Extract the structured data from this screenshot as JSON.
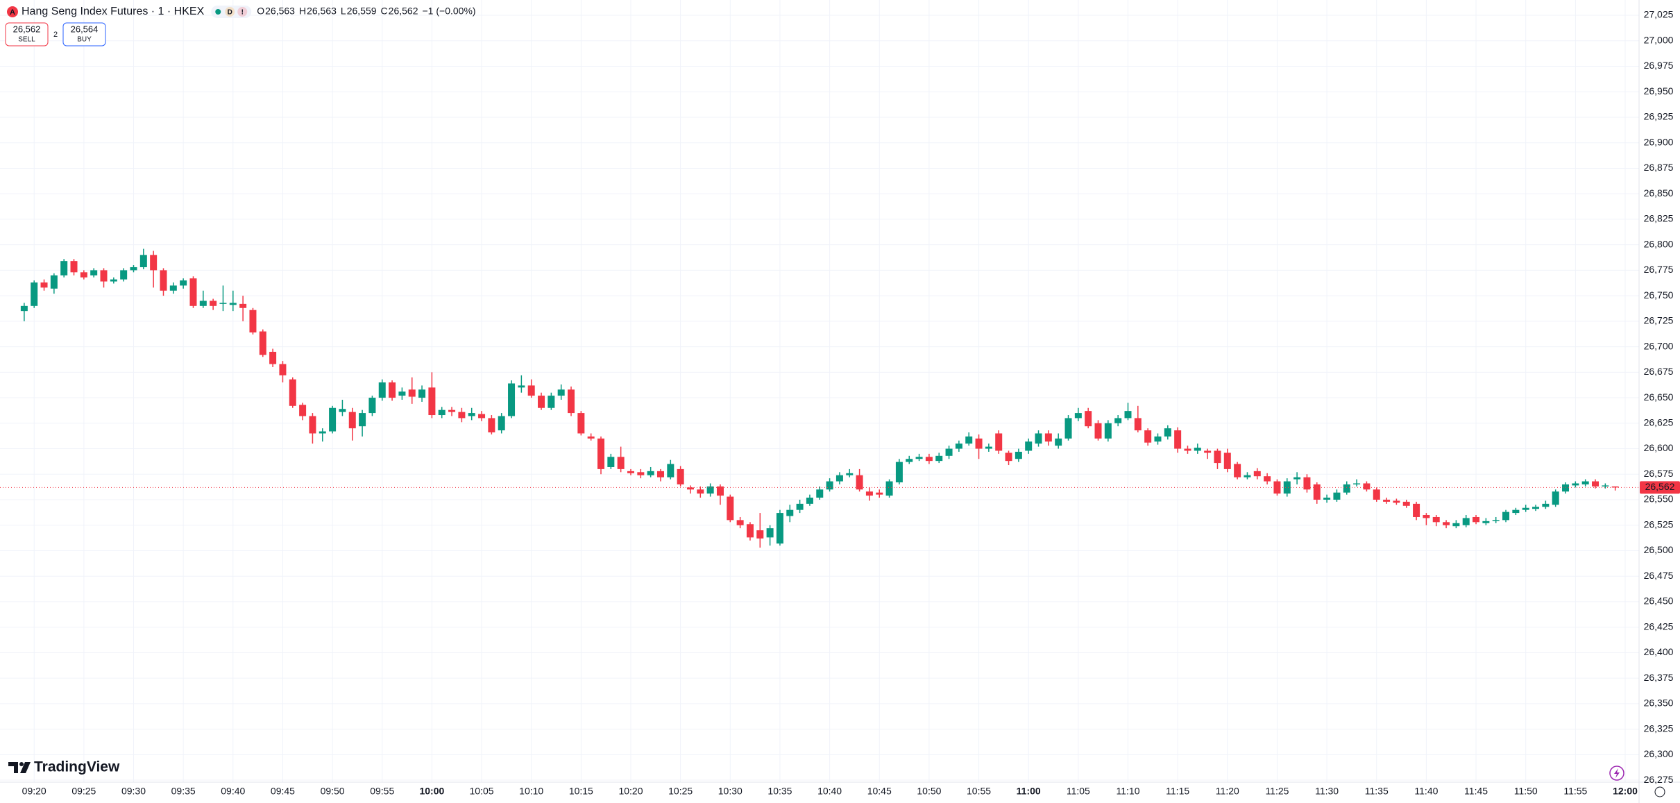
{
  "chart_data": {
    "type": "candlestick",
    "title": "Hang Seng Index Futures · 1 · HKEX",
    "symbol_icon": "A",
    "badges": [
      "D",
      "!"
    ],
    "ohlc_legend": [
      {
        "key": "O",
        "value": "26,563"
      },
      {
        "key": "H",
        "value": "26,563"
      },
      {
        "key": "L",
        "value": "26,559"
      },
      {
        "key": "C",
        "value": "26,562"
      }
    ],
    "change": "−1 (−0.00%)",
    "trade": {
      "sell_price": "26,562",
      "sell_label": "SELL",
      "spread": "2",
      "buy_price": "26,564",
      "buy_label": "BUY"
    },
    "brand": "TradingView",
    "up_color": "#089981",
    "down_color": "#f23645",
    "grid": true,
    "last_price": 26562,
    "last_price_label": "26,562",
    "categories": [
      null,
      "09:20",
      null,
      null,
      null,
      null,
      "09:25",
      null,
      null,
      null,
      null,
      "09:30",
      null,
      null,
      null,
      null,
      "09:35",
      null,
      null,
      null,
      null,
      "09:40",
      null,
      null,
      null,
      null,
      "09:45",
      null,
      null,
      null,
      null,
      "09:50",
      null,
      null,
      null,
      null,
      "09:55",
      null,
      null,
      null,
      null,
      "10:00",
      null,
      null,
      null,
      null,
      "10:05",
      null,
      null,
      null,
      null,
      "10:10",
      null,
      null,
      null,
      null,
      "10:15",
      null,
      null,
      null,
      null,
      "10:20",
      null,
      null,
      null,
      null,
      "10:25",
      null,
      null,
      null,
      null,
      "10:30",
      null,
      null,
      null,
      null,
      "10:35",
      null,
      null,
      null,
      null,
      "10:40",
      null,
      null,
      null,
      null,
      "10:45",
      null,
      null,
      null,
      null,
      "10:50",
      null,
      null,
      null,
      null,
      "10:55",
      null,
      null,
      null,
      null,
      "11:00",
      null,
      null,
      null,
      null,
      "11:05",
      null,
      null,
      null,
      null,
      "11:10",
      null,
      null,
      null,
      null,
      "11:15",
      null,
      null,
      null,
      null,
      "11:20",
      null,
      null,
      null,
      null,
      "11:25",
      null,
      null,
      null,
      null,
      "11:30",
      null,
      null,
      null,
      null,
      "11:35",
      null,
      null,
      null,
      null,
      "11:40",
      null,
      null,
      null,
      null,
      "11:45",
      null,
      null,
      null,
      null,
      "11:50",
      null,
      null,
      null,
      null,
      "11:55",
      null,
      null,
      null,
      null,
      "12:00"
    ],
    "open": [
      26735,
      26740,
      26763,
      26757,
      26770,
      26784,
      26773,
      26770,
      26775,
      26764,
      26766,
      26775,
      26778,
      26790,
      26775,
      26755,
      26760,
      26767,
      26740,
      26745,
      26742,
      26741,
      26742,
      26736,
      26715,
      26695,
      26683,
      26668,
      26643,
      26632,
      26615,
      26617,
      26636,
      26636,
      26622,
      26635,
      26650,
      26665,
      26652,
      26658,
      26650,
      26660,
      26633,
      26638,
      26636,
      26632,
      26634,
      26630,
      26618,
      26632,
      26660,
      26662,
      26652,
      26640,
      26652,
      26658,
      26635,
      26612,
      26610,
      26582,
      26592,
      26578,
      26577,
      26574,
      26578,
      26572,
      26580,
      26562,
      26560,
      26556,
      26563,
      26553,
      26530,
      26526,
      26520,
      26513,
      26507,
      26534,
      26540,
      26546,
      26552,
      26560,
      26568,
      26574,
      26574,
      26558,
      26557,
      26554,
      26567,
      26587,
      26590,
      26592,
      26588,
      26593,
      26600,
      26605,
      26610,
      26600,
      26615,
      26596,
      26590,
      26598,
      26605,
      26615,
      26603,
      26610,
      26630,
      26637,
      26625,
      26610,
      26625,
      26630,
      26630,
      26618,
      26607,
      26612,
      26618,
      26600,
      26598,
      26598,
      26598,
      26596,
      26585,
      26572,
      26578,
      26573,
      26568,
      26556,
      26570,
      26572,
      26565,
      26550,
      26550,
      26557,
      26565,
      26566,
      26560,
      26550,
      26549,
      26548,
      26546,
      26535,
      26533,
      26528,
      26524,
      26525,
      26533,
      26527,
      26529,
      26530,
      26537,
      26540,
      26541,
      26543,
      26545,
      26558,
      26564,
      26565,
      26568,
      26563,
      26563,
      null
    ],
    "high": [
      26743,
      26765,
      26766,
      26772,
      26786,
      26786,
      26775,
      26777,
      26777,
      26768,
      26777,
      26780,
      26796,
      26794,
      26777,
      26763,
      26767,
      26769,
      26755,
      26747,
      26760,
      26755,
      26750,
      26738,
      26717,
      26698,
      26686,
      26670,
      26645,
      26635,
      26620,
      26642,
      26648,
      26640,
      26638,
      26652,
      26668,
      26667,
      26660,
      26670,
      26662,
      26675,
      26641,
      26641,
      26640,
      26640,
      26637,
      26633,
      26635,
      26667,
      26672,
      26668,
      26655,
      26655,
      26663,
      26661,
      26637,
      26615,
      26612,
      26595,
      26602,
      26580,
      26580,
      26582,
      26580,
      26589,
      26583,
      26564,
      26563,
      26566,
      26565,
      26555,
      26533,
      26528,
      26537,
      26525,
      26540,
      26545,
      26550,
      26555,
      26563,
      26571,
      26577,
      26580,
      26580,
      26562,
      26560,
      26570,
      26590,
      26593,
      26595,
      26595,
      26596,
      26603,
      26608,
      26616,
      26614,
      26605,
      26618,
      26598,
      26600,
      26610,
      26618,
      26618,
      26615,
      26633,
      26640,
      26640,
      26628,
      26628,
      26633,
      26645,
      26642,
      26620,
      26615,
      26623,
      26621,
      26603,
      26605,
      26600,
      26600,
      26600,
      26587,
      26577,
      26581,
      26576,
      26570,
      26571,
      26577,
      26575,
      26567,
      26555,
      26560,
      26568,
      26570,
      26568,
      26562,
      26552,
      26551,
      26550,
      26548,
      26537,
      26535,
      26530,
      26530,
      26535,
      26535,
      26532,
      26533,
      26540,
      26542,
      26545,
      26545,
      26549,
      26560,
      26567,
      26568,
      26570,
      26570,
      26566,
      26563,
      null
    ],
    "low": [
      26725,
      26738,
      26755,
      26752,
      26768,
      26770,
      26766,
      26768,
      26758,
      26762,
      26764,
      26773,
      26776,
      26758,
      26750,
      26752,
      26757,
      26738,
      26738,
      26736,
      26735,
      26735,
      26725,
      26712,
      26690,
      26680,
      26665,
      26640,
      26628,
      26605,
      26607,
      26615,
      26632,
      26608,
      26612,
      26632,
      26647,
      26647,
      26648,
      26644,
      26646,
      26630,
      26630,
      26632,
      26626,
      26628,
      26627,
      26614,
      26615,
      26630,
      26655,
      26650,
      26638,
      26638,
      26648,
      26632,
      26613,
      26608,
      26575,
      26580,
      26577,
      26574,
      26571,
      26572,
      26568,
      26570,
      26563,
      26556,
      26552,
      26553,
      26545,
      26528,
      26522,
      26510,
      26503,
      26505,
      26505,
      26528,
      26537,
      26544,
      26550,
      26558,
      26565,
      26572,
      26558,
      26549,
      26552,
      26552,
      26565,
      26585,
      26588,
      26585,
      26586,
      26590,
      26597,
      26603,
      26590,
      26597,
      26595,
      26584,
      26587,
      26595,
      26602,
      26603,
      26600,
      26608,
      26627,
      26620,
      26608,
      26607,
      26622,
      26628,
      26616,
      26603,
      26604,
      26609,
      26596,
      26595,
      26595,
      26590,
      26580,
      26577,
      26570,
      26570,
      26570,
      26565,
      26554,
      26553,
      26565,
      26557,
      26546,
      26547,
      26548,
      26555,
      26563,
      26558,
      26548,
      26546,
      26545,
      26542,
      26530,
      26525,
      26524,
      26522,
      26522,
      26523,
      26526,
      26525,
      26527,
      26528,
      26535,
      26538,
      26539,
      26541,
      26543,
      26556,
      26562,
      26563,
      26561,
      26561,
      26559,
      null
    ],
    "close": [
      26740,
      26763,
      26758,
      26770,
      26784,
      26773,
      26768,
      26775,
      26764,
      26766,
      26775,
      26778,
      26790,
      26775,
      26755,
      26760,
      26765,
      26740,
      26745,
      26740,
      26743,
      26743,
      26738,
      26714,
      26692,
      26683,
      26672,
      26642,
      26632,
      26615,
      26617,
      26640,
      26639,
      26620,
      26635,
      26650,
      26665,
      26650,
      26656,
      26651,
      26658,
      26633,
      26638,
      26636,
      26630,
      26635,
      26630,
      26616,
      26632,
      26664,
      26662,
      26652,
      26640,
      26652,
      26658,
      26635,
      26615,
      26610,
      26580,
      26592,
      26580,
      26576,
      26574,
      26578,
      26572,
      26585,
      26565,
      26560,
      26556,
      26563,
      26554,
      26530,
      26525,
      26513,
      26512,
      26522,
      26537,
      26540,
      26546,
      26552,
      26560,
      26568,
      26574,
      26576,
      26560,
      26554,
      26555,
      26568,
      26587,
      26590,
      26592,
      26588,
      26593,
      26600,
      26605,
      26612,
      26600,
      26602,
      26598,
      26588,
      26597,
      26607,
      26615,
      26607,
      26610,
      26630,
      26635,
      26622,
      26610,
      26625,
      26630,
      26637,
      26618,
      26606,
      26612,
      26620,
      26600,
      26598,
      26601,
      26596,
      26586,
      26580,
      26572,
      26574,
      26573,
      26568,
      26556,
      26568,
      26572,
      26560,
      26550,
      26552,
      26557,
      26565,
      26566,
      26560,
      26550,
      26548,
      26547,
      26544,
      26533,
      26532,
      26528,
      26525,
      26527,
      26532,
      26528,
      26529,
      26530,
      26538,
      26540,
      26542,
      26543,
      26546,
      26558,
      26565,
      26566,
      26568,
      26563,
      26564,
      26562,
      null
    ],
    "ylim": [
      26273,
      27040
    ],
    "yticks": [
      {
        "value": 26275,
        "label": "26,275"
      },
      {
        "value": 26300,
        "label": "26,300"
      },
      {
        "value": 26325,
        "label": "26,325"
      },
      {
        "value": 26350,
        "label": "26,350"
      },
      {
        "value": 26375,
        "label": "26,375"
      },
      {
        "value": 26400,
        "label": "26,400"
      },
      {
        "value": 26425,
        "label": "26,425"
      },
      {
        "value": 26450,
        "label": "26,450"
      },
      {
        "value": 26475,
        "label": "26,475"
      },
      {
        "value": 26500,
        "label": "26,500"
      },
      {
        "value": 26525,
        "label": "26,525"
      },
      {
        "value": 26550,
        "label": "26,550"
      },
      {
        "value": 26575,
        "label": "26,575"
      },
      {
        "value": 26600,
        "label": "26,600"
      },
      {
        "value": 26625,
        "label": "26,625"
      },
      {
        "value": 26650,
        "label": "26,650"
      },
      {
        "value": 26675,
        "label": "26,675"
      },
      {
        "value": 26700,
        "label": "26,700"
      },
      {
        "value": 26725,
        "label": "26,725"
      },
      {
        "value": 26750,
        "label": "26,750"
      },
      {
        "value": 26775,
        "label": "26,775"
      },
      {
        "value": 26800,
        "label": "26,800"
      },
      {
        "value": 26825,
        "label": "26,825"
      },
      {
        "value": 26850,
        "label": "26,850"
      },
      {
        "value": 26875,
        "label": "26,875"
      },
      {
        "value": 26900,
        "label": "26,900"
      },
      {
        "value": 26925,
        "label": "26,925"
      },
      {
        "value": 26950,
        "label": "26,950"
      },
      {
        "value": 26975,
        "label": "26,975"
      },
      {
        "value": 27000,
        "label": "27,000"
      },
      {
        "value": 27025,
        "label": "27,025"
      }
    ]
  }
}
